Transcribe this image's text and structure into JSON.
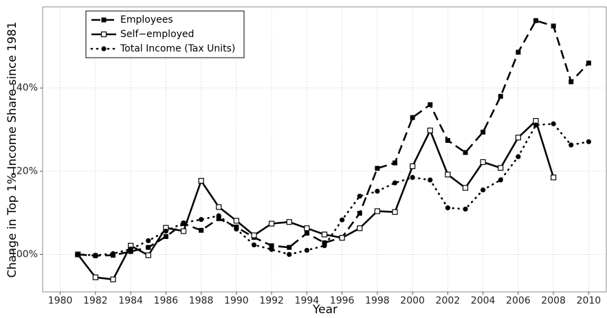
{
  "chart_data": {
    "type": "line",
    "x_label": "Year",
    "y_label": "Change in Top 1% Income Share since 1981",
    "x": [
      1981,
      1982,
      1983,
      1984,
      1985,
      1986,
      1987,
      1988,
      1989,
      1990,
      1991,
      1992,
      1993,
      1994,
      1995,
      1996,
      1997,
      1998,
      1999,
      2000,
      2001,
      2002,
      2003,
      2004,
      2005,
      2006,
      2007,
      2008,
      2009,
      2010
    ],
    "series": [
      {
        "name": "Employees",
        "color": "#000000",
        "line_style": "dashed",
        "marker": "filled-square",
        "values": [
          100,
          99.7,
          99.8,
          100.7,
          101.7,
          104.3,
          107.4,
          105.8,
          108.6,
          106.6,
          104.1,
          102.1,
          101.7,
          105.1,
          102.8,
          104.1,
          109.9,
          120.7,
          122.0,
          132.9,
          136.0,
          127.4,
          124.5,
          129.4,
          138.0,
          148.6,
          156.2,
          154.9,
          141.5,
          146.0
        ]
      },
      {
        "name": "Self−employed",
        "color": "#000000",
        "line_style": "solid",
        "marker": "open-square",
        "values": [
          100,
          94.5,
          94.0,
          102.1,
          99.8,
          106.4,
          105.6,
          117.7,
          111.4,
          108.1,
          104.6,
          107.4,
          107.8,
          106.3,
          104.8,
          104.0,
          106.3,
          110.4,
          110.2,
          121.2,
          129.8,
          119.2,
          116.0,
          122.2,
          120.8,
          128.1,
          132.1,
          118.5,
          null,
          null
        ]
      },
      {
        "name": "Total Income (Tax Units)",
        "color": "#000000",
        "line_style": "dotted",
        "marker": "circle",
        "values": [
          100,
          99.8,
          100.2,
          101.3,
          103.3,
          105.6,
          107.6,
          108.4,
          109.3,
          106.1,
          102.3,
          101.2,
          100.0,
          101.0,
          102.1,
          108.3,
          114.0,
          115.2,
          117.2,
          118.5,
          117.9,
          111.2,
          110.9,
          115.5,
          117.9,
          123.5,
          131.1,
          131.4,
          126.3,
          127.1
        ]
      }
    ],
    "xlim": [
      1979,
      2011
    ],
    "xticks": [
      1980,
      1982,
      1984,
      1986,
      1988,
      1990,
      1992,
      1994,
      1996,
      1998,
      2000,
      2002,
      2004,
      2006,
      2008,
      2010
    ],
    "ylim": [
      91,
      159.5
    ],
    "yticks": [
      {
        "value": 100,
        "label": "100%"
      },
      {
        "value": 120,
        "label": "120%"
      },
      {
        "value": 140,
        "label": "140%"
      }
    ],
    "grid": true,
    "legend_position": "top-left"
  }
}
